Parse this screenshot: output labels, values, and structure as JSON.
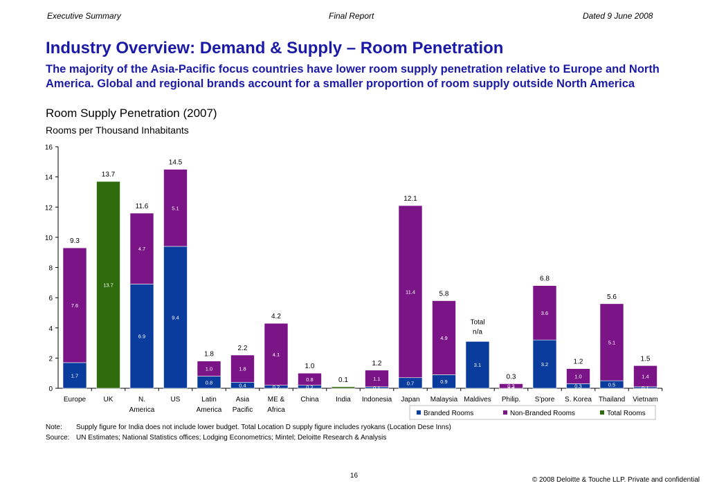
{
  "header": {
    "left": "Executive Summary",
    "center": "Final Report",
    "right": "Dated 9 June 2008"
  },
  "title": "Industry Overview: Demand & Supply – Room Penetration",
  "subtitle": "The majority of the Asia-Pacific focus countries have lower room supply penetration relative to Europe and North America. Global and regional brands account for a smaller proportion of room supply outside North America",
  "chart_heading": "Room Supply Penetration (2007)",
  "chart_unit": "Rooms per Thousand Inhabitants",
  "chart_data": {
    "type": "bar",
    "stacked": true,
    "ylim": [
      0,
      16
    ],
    "yticks": [
      0,
      2,
      4,
      6,
      8,
      10,
      12,
      14,
      16
    ],
    "grid": false,
    "legend_position": "bottom-right",
    "categories": [
      [
        "Europe"
      ],
      [
        "UK"
      ],
      [
        "N.",
        "America"
      ],
      [
        "US"
      ],
      [
        "Latin",
        "America"
      ],
      [
        "Asia",
        "Pacific"
      ],
      [
        "ME &",
        "Africa"
      ],
      [
        "China"
      ],
      [
        "India"
      ],
      [
        "Indonesia"
      ],
      [
        "Japan"
      ],
      [
        "Malaysia"
      ],
      [
        "Maldives"
      ],
      [
        "Philip."
      ],
      [
        "S'pore"
      ],
      [
        "S. Korea"
      ],
      [
        "Thailand"
      ],
      [
        "Vietnam"
      ]
    ],
    "series": [
      {
        "name": "Branded Rooms",
        "color": "#0a3c9e",
        "values": [
          1.7,
          0,
          6.9,
          9.4,
          0.8,
          0.4,
          0.2,
          0.2,
          0,
          0.1,
          0.7,
          0.9,
          3.1,
          0.0,
          3.2,
          0.3,
          0.5,
          0.1
        ],
        "labels": [
          "1.7",
          "",
          "6.9",
          "9.4",
          "0.8",
          "0.4",
          "0.2",
          "0.2",
          "",
          "0.1",
          "0.7",
          "0.9",
          "3.1",
          "0.0",
          "3.2",
          "0.3",
          "0.5",
          "0.1"
        ]
      },
      {
        "name": "Non-Branded Rooms",
        "color": "#7a1487",
        "values": [
          7.6,
          0,
          4.7,
          5.1,
          1.0,
          1.8,
          4.1,
          0.8,
          0,
          1.1,
          11.4,
          4.9,
          0,
          0.3,
          3.6,
          1.0,
          5.1,
          1.4
        ],
        "labels": [
          "7.6",
          "",
          "4.7",
          "5.1",
          "1.0",
          "1.8",
          "4.1",
          "0.8",
          "",
          "1.1",
          "11.4",
          "4.9",
          "",
          "0.3",
          "3.6",
          "1.0",
          "5.1",
          "1.4"
        ]
      },
      {
        "name": "Total Rooms",
        "color": "#2d6b0c",
        "values": [
          0,
          13.7,
          0,
          0,
          0,
          0,
          0,
          0,
          0.1,
          0,
          0,
          0,
          0,
          0,
          0,
          0,
          0,
          0
        ],
        "labels": [
          "",
          "13.7",
          "",
          "",
          "",
          "",
          "",
          "",
          "",
          "",
          "",
          "",
          "",
          "",
          "",
          "",
          "",
          ""
        ]
      }
    ],
    "totals": [
      "9.3",
      "13.7",
      "11.6",
      "14.5",
      "1.8",
      "2.2",
      "4.2",
      "1.0",
      "0.1",
      "1.2",
      "12.1",
      "5.8",
      "",
      "0.3",
      "6.8",
      "1.2",
      "5.6",
      "1.5"
    ],
    "annotations": [
      "Total",
      "n/a"
    ]
  },
  "note": {
    "note_label": "Note:",
    "note_text": "Supply figure for India does not include lower budget. Total Location D supply figure includes ryokans (Location Dese Inns)",
    "source_label": "Source:",
    "source_text": "UN Estimates; National Statistics offices; Lodging Econometrics; Mintel; Deloitte Research & Analysis"
  },
  "footer": {
    "page": "16",
    "copyright": "© 2008 Deloitte & Touche LLP. Private and confidential"
  }
}
